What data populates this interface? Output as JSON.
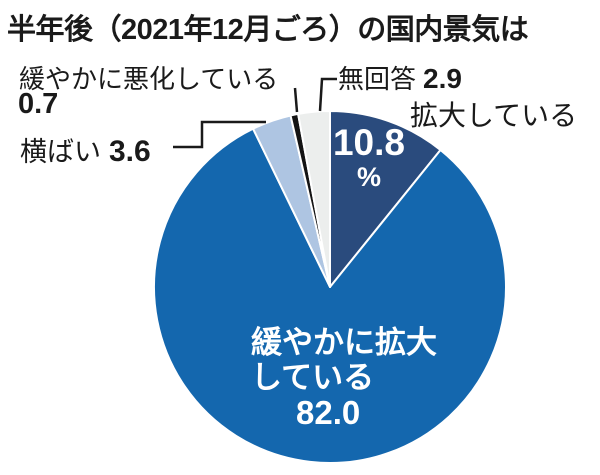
{
  "title": "半年後（2021年12月ごろ）の国内景気は",
  "chart_data": {
    "type": "pie",
    "title": "半年後（2021年12月ごろ）の国内景気は",
    "unit": "%",
    "start_angle_deg": 0,
    "direction": "clockwise",
    "total": 100,
    "legend_position": "none",
    "slices": [
      {
        "id": "expanding",
        "label": "拡大している",
        "value": 10.8,
        "color": "#2a4b7d",
        "label_display": "10.8%"
      },
      {
        "id": "expanding-gradually",
        "label": "緩やかに拡大している",
        "value": 82.0,
        "color": "#1467ae",
        "label_display": "緩やかに拡大している 82.0"
      },
      {
        "id": "flat",
        "label": "横ばい",
        "value": 3.6,
        "color": "#aec5e2",
        "label_display": "横ばい 3.6"
      },
      {
        "id": "worsening-gradually",
        "label": "緩やかに悪化している",
        "value": 0.7,
        "color": "#141414",
        "label_display": "緩やかに悪化している 0.7"
      },
      {
        "id": "no-answer",
        "label": "無回答",
        "value": 2.9,
        "color": "#eceeed",
        "label_display": "無回答 2.9"
      }
    ]
  },
  "callouts": {
    "worsening": {
      "text": "緩やかに悪化している",
      "value": "0.7"
    },
    "no_answer": {
      "text": "無回答",
      "value": "2.9"
    },
    "expanding": {
      "text": "拡大している",
      "value": "10.8",
      "unit": "%"
    },
    "flat": {
      "text": "横ばい",
      "value": "3.6"
    },
    "expanding_gradually": {
      "line1": "緩やかに拡大",
      "line2": "している",
      "value": "82.0"
    }
  },
  "colors": {
    "background": "#ffffff",
    "text": "#1a1a1a",
    "slice_border": "#ffffff",
    "pie_label_text": "#ffffff",
    "connector": "#1a1a1a"
  }
}
